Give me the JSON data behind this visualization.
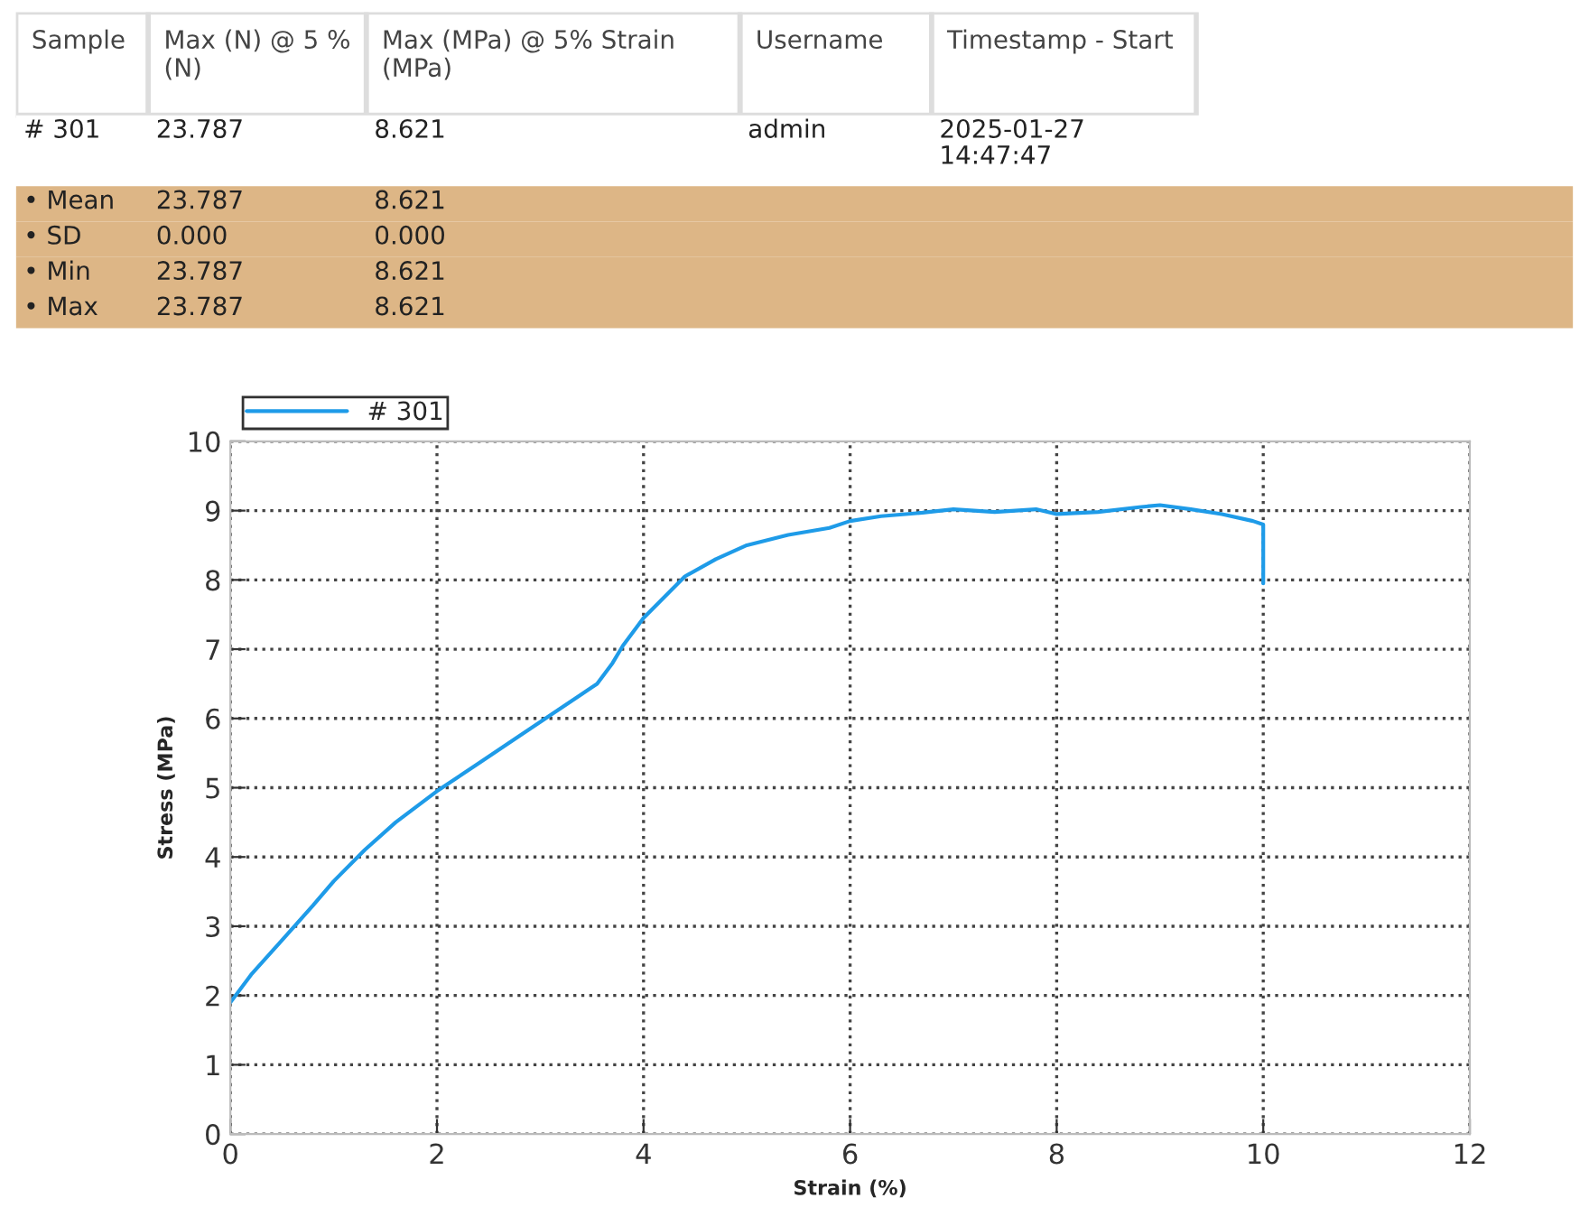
{
  "chart_data": [
    {
      "type": "other",
      "categories": [
        "Sample",
        "Max (N) @ 5 %\n(N)",
        "Max (MPa) @ 5% Strain\n(MPa)",
        "Username",
        "Timestamp - Start"
      ],
      "cell_labels": [
        [
          "# 301",
          "23.787",
          "8.621",
          "admin",
          "2025-01-27\n14:47:47"
        ],
        [
          "• Mean",
          "23.787",
          "8.621",
          null,
          null
        ],
        [
          "• SD",
          "0.000",
          "0.000",
          null,
          null
        ],
        [
          "• Min",
          "23.787",
          "8.621",
          null,
          null
        ],
        [
          "• Max",
          "23.787",
          "8.621",
          null,
          null
        ]
      ],
      "colors": [
        "#ffffff",
        "#ddb686",
        "#ddb686",
        "#ddb686",
        "#ddb686"
      ]
    },
    {
      "type": "line",
      "xlabel": "Strain (%)",
      "ylabel": "Stress (MPa)",
      "xlim": [
        0,
        12
      ],
      "ylim": [
        0,
        10
      ],
      "xticks": [
        0,
        2,
        4,
        6,
        8,
        10,
        12
      ],
      "yticks": [
        0,
        1,
        2,
        3,
        4,
        5,
        6,
        7,
        8,
        9,
        10
      ],
      "grid": true,
      "legend": "top left",
      "line_style": "solid",
      "marker": "none",
      "series": [
        {
          "name": "# 301",
          "color": "#1e9be8",
          "x": [
            0,
            0.2,
            0.5,
            0.8,
            1.0,
            1.3,
            1.6,
            2.0,
            2.4,
            2.8,
            3.1,
            3.4,
            3.55,
            3.7,
            3.8,
            4.0,
            4.2,
            4.4,
            4.7,
            5.0,
            5.4,
            5.8,
            6.0,
            6.3,
            6.7,
            7.0,
            7.4,
            7.8,
            8.0,
            8.4,
            8.8,
            9.0,
            9.3,
            9.6,
            9.9,
            10.0,
            10.0
          ],
          "values": [
            1.9,
            2.3,
            2.8,
            3.3,
            3.65,
            4.1,
            4.5,
            4.95,
            5.35,
            5.75,
            6.05,
            6.35,
            6.5,
            6.8,
            7.05,
            7.45,
            7.75,
            8.05,
            8.3,
            8.5,
            8.65,
            8.75,
            8.85,
            8.92,
            8.97,
            9.02,
            8.98,
            9.02,
            8.95,
            8.98,
            9.05,
            9.08,
            9.02,
            8.95,
            8.85,
            8.8,
            7.95
          ]
        }
      ]
    }
  ]
}
